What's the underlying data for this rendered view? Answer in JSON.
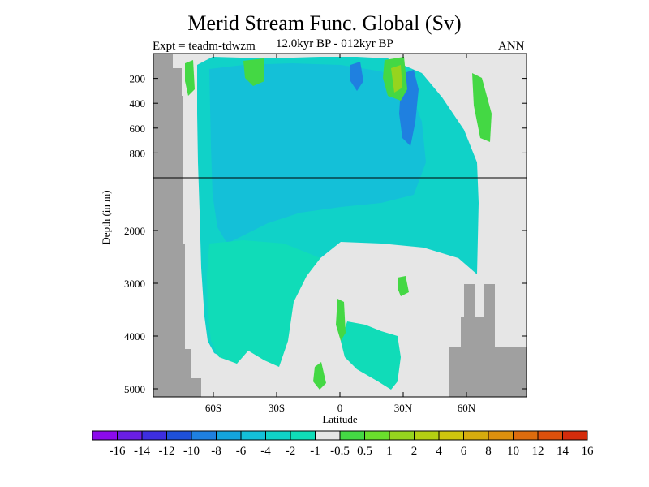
{
  "chart_data": {
    "type": "contour",
    "title": "Merid Stream Func. Global (Sv)",
    "subtitle_left": "Expt = teadm-tdwzm",
    "subtitle_center": "12.0kyr BP - 012kyr BP",
    "subtitle_right": "ANN",
    "xlabel": "Latitude",
    "ylabel": "Depth (in m)",
    "xlim": [
      -90,
      90
    ],
    "x_ticks": [
      {
        "value": -60,
        "label": "60S"
      },
      {
        "value": -30,
        "label": "30S"
      },
      {
        "value": 0,
        "label": "0"
      },
      {
        "value": 30,
        "label": "30N"
      },
      {
        "value": 60,
        "label": "60N"
      }
    ],
    "y_split_depth": 1000,
    "y_ticks_upper": [
      {
        "value": 200,
        "label": "200"
      },
      {
        "value": 400,
        "label": "400"
      },
      {
        "value": 600,
        "label": "600"
      },
      {
        "value": 800,
        "label": "800"
      }
    ],
    "y_ticks_lower": [
      {
        "value": 2000,
        "label": "2000"
      },
      {
        "value": 3000,
        "label": "3000"
      },
      {
        "value": 4000,
        "label": "4000"
      },
      {
        "value": 5000,
        "label": "5000"
      }
    ],
    "colorbar": {
      "labels": [
        "-16",
        "-14",
        "-12",
        "-10",
        "-8",
        "-6",
        "-4",
        "-2",
        "-1",
        "-0.5",
        "0.5",
        "1",
        "2",
        "4",
        "6",
        "8",
        "10",
        "12",
        "14",
        "16"
      ],
      "colors": [
        "#8c0aec",
        "#6a1ee4",
        "#3d2ee0",
        "#1f50d8",
        "#1f80e0",
        "#14a4dc",
        "#14c0d8",
        "#10d2c8",
        "#10dcb8",
        "#e6e6e6",
        "#44d844",
        "#6ade2c",
        "#96d41e",
        "#b4d012",
        "#d0c60e",
        "#d6ac0e",
        "#dc900e",
        "#dc6c0e",
        "#dc500c",
        "#d42c0c"
      ]
    },
    "colors": {
      "land": "#a0a0a0",
      "background": "#e6e6e6",
      "band_neg1": "#10d2c8",
      "band_neg2": "#14c0d8",
      "band_neg4": "#1f80e0",
      "band_pos1": "#44d844",
      "band_pos2": "#96d41e"
    }
  }
}
